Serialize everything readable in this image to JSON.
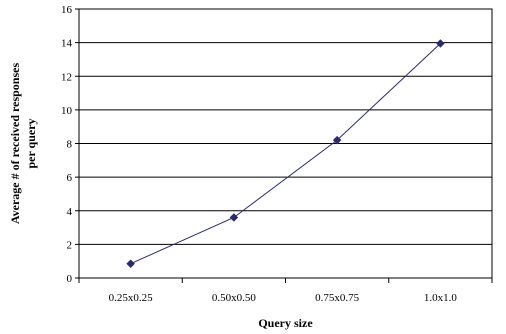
{
  "chart_data": {
    "type": "line",
    "categories": [
      "0.25x0.25",
      "0.50x0.50",
      "0.75x0.75",
      "1.0x1.0"
    ],
    "series": [
      {
        "values": [
          0.85,
          3.6,
          8.2,
          13.95
        ],
        "color": "#2b2b6b"
      }
    ],
    "xlabel": "Query size",
    "ylabel_lines": [
      "Average # of received responses",
      "per query"
    ],
    "ylim": [
      0,
      16
    ],
    "yticks": [
      0,
      2,
      4,
      6,
      8,
      10,
      12,
      14,
      16
    ],
    "grid": true,
    "marker": "diamond"
  }
}
